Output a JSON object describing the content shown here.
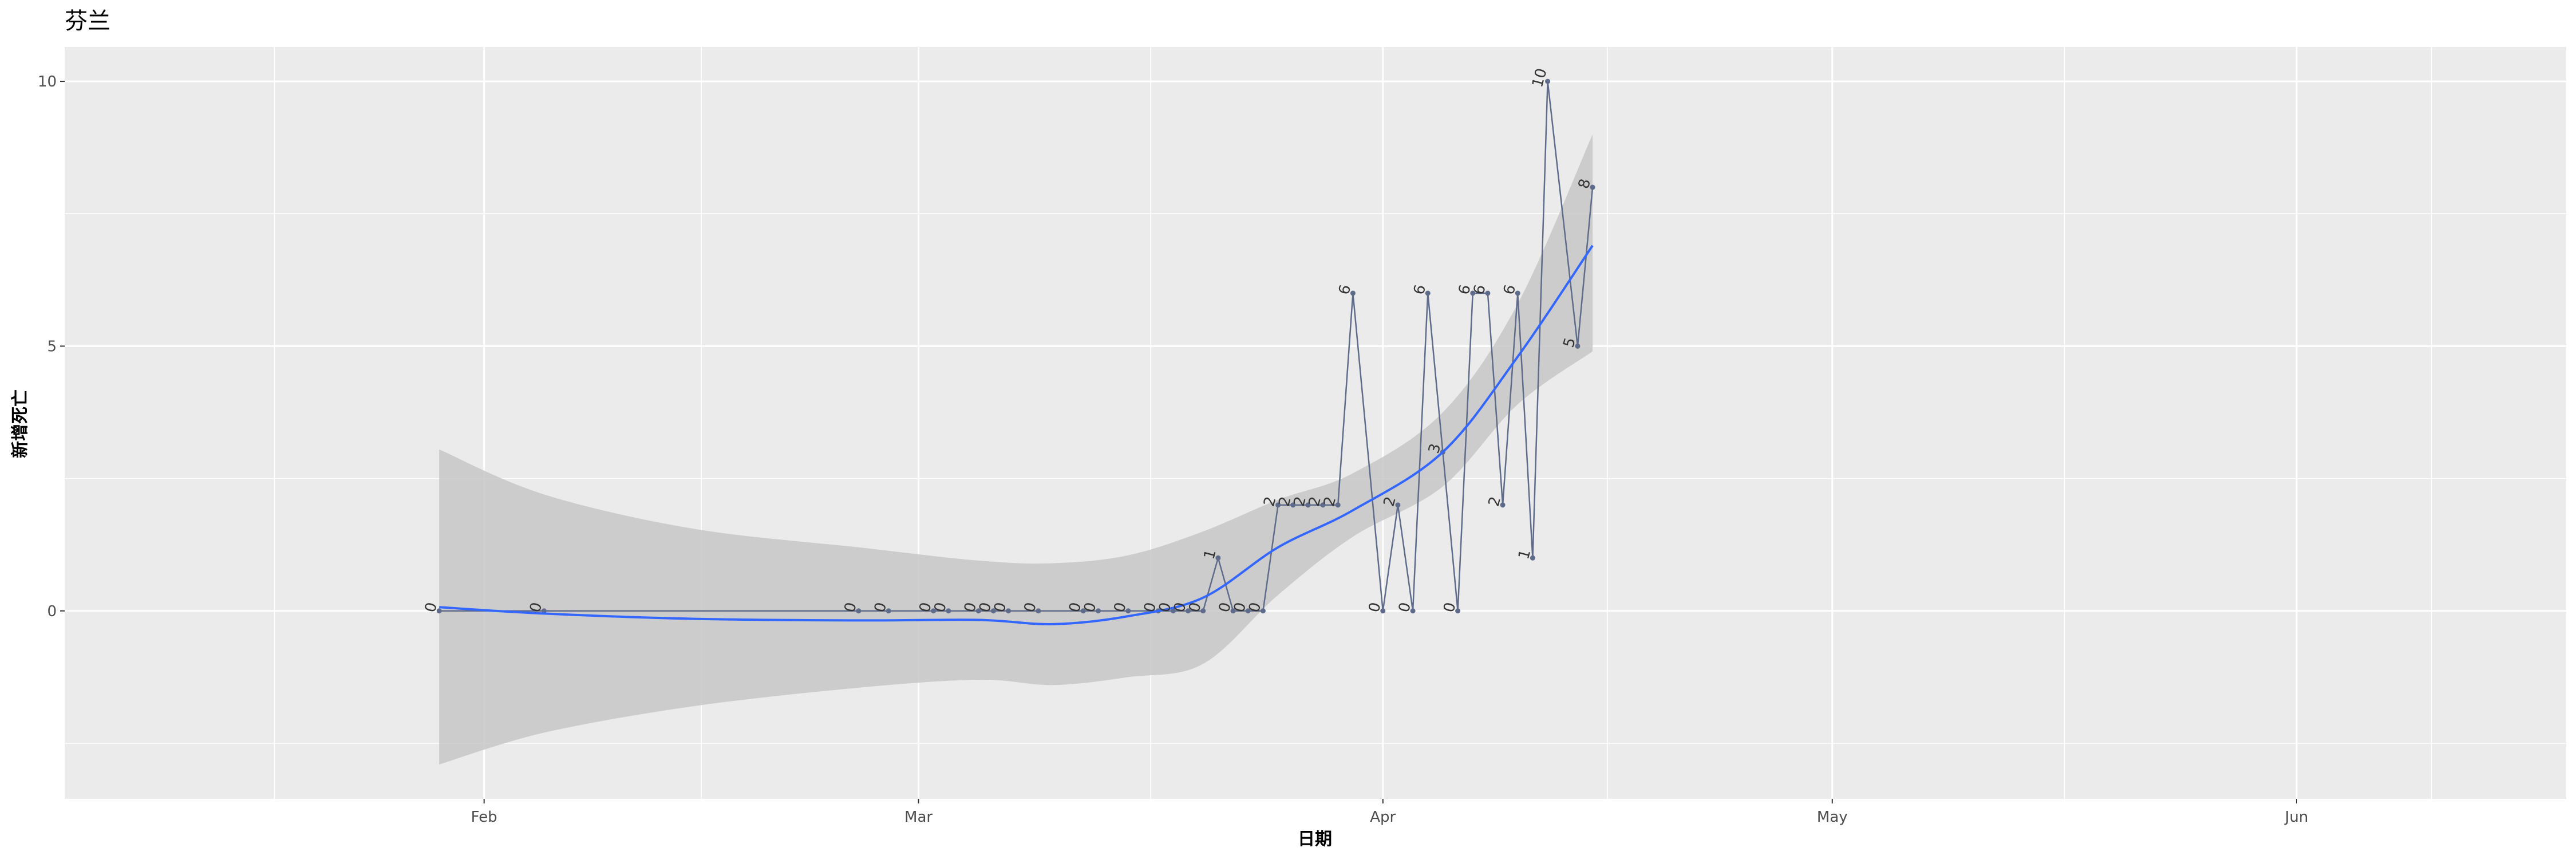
{
  "chart_data": {
    "type": "line",
    "title": "芬兰",
    "xlabel": "日期",
    "ylabel": "新增死亡",
    "x_ticks": [
      "2020-02-01",
      "2020-03-01",
      "2020-04-01",
      "2020-05-01",
      "2020-06-01"
    ],
    "x_tick_labels": [
      "Feb",
      "Mar",
      "Apr",
      "May",
      "Jun"
    ],
    "xlim": [
      "2020-01-04",
      "2020-06-19"
    ],
    "ylim": [
      -3.55,
      10.65
    ],
    "y_ticks": [
      0,
      5,
      10
    ],
    "y_tick_labels": [
      "0",
      "5",
      "10"
    ],
    "grid": true,
    "legend": "none",
    "series": [
      {
        "values": [
          {
            "x": "2020-01-29",
            "y": 0
          },
          {
            "x": "2020-02-05",
            "y": 0
          },
          {
            "x": "2020-02-26",
            "y": 0
          },
          {
            "x": "2020-02-28",
            "y": 0
          },
          {
            "x": "2020-03-02",
            "y": 0
          },
          {
            "x": "2020-03-03",
            "y": 0
          },
          {
            "x": "2020-03-05",
            "y": 0
          },
          {
            "x": "2020-03-06",
            "y": 0
          },
          {
            "x": "2020-03-07",
            "y": 0
          },
          {
            "x": "2020-03-09",
            "y": 0
          },
          {
            "x": "2020-03-12",
            "y": 0
          },
          {
            "x": "2020-03-13",
            "y": 0
          },
          {
            "x": "2020-03-15",
            "y": 0
          },
          {
            "x": "2020-03-17",
            "y": 0
          },
          {
            "x": "2020-03-18",
            "y": 0
          },
          {
            "x": "2020-03-19",
            "y": 0
          },
          {
            "x": "2020-03-20",
            "y": 0
          },
          {
            "x": "2020-03-21",
            "y": 1
          },
          {
            "x": "2020-03-22",
            "y": 0
          },
          {
            "x": "2020-03-23",
            "y": 0
          },
          {
            "x": "2020-03-24",
            "y": 0
          },
          {
            "x": "2020-03-25",
            "y": 2
          },
          {
            "x": "2020-03-26",
            "y": 2
          },
          {
            "x": "2020-03-27",
            "y": 2
          },
          {
            "x": "2020-03-28",
            "y": 2
          },
          {
            "x": "2020-03-29",
            "y": 2
          },
          {
            "x": "2020-03-30",
            "y": 6
          },
          {
            "x": "2020-04-01",
            "y": 0
          },
          {
            "x": "2020-04-02",
            "y": 2
          },
          {
            "x": "2020-04-03",
            "y": 0
          },
          {
            "x": "2020-04-04",
            "y": 6
          },
          {
            "x": "2020-04-05",
            "y": 3
          },
          {
            "x": "2020-04-06",
            "y": 0
          },
          {
            "x": "2020-04-07",
            "y": 6
          },
          {
            "x": "2020-04-08",
            "y": 6
          },
          {
            "x": "2020-04-09",
            "y": 2
          },
          {
            "x": "2020-04-10",
            "y": 6
          },
          {
            "x": "2020-04-11",
            "y": 1
          },
          {
            "x": "2020-04-12",
            "y": 10
          },
          {
            "x": "2020-04-14",
            "y": 5
          },
          {
            "x": "2020-04-15",
            "y": 8
          }
        ]
      }
    ],
    "smooth": {
      "x": [
        "2020-01-29",
        "2020-02-05",
        "2020-02-15",
        "2020-02-26",
        "2020-03-05",
        "2020-03-10",
        "2020-03-15",
        "2020-03-20",
        "2020-03-25",
        "2020-03-30",
        "2020-04-05",
        "2020-04-10",
        "2020-04-15"
      ],
      "fit": [
        0.07,
        -0.05,
        -0.15,
        -0.18,
        -0.17,
        -0.25,
        -0.1,
        0.25,
        1.2,
        1.9,
        3.0,
        4.8,
        6.9
      ],
      "lower": [
        -2.9,
        -2.3,
        -1.8,
        -1.45,
        -1.3,
        -1.4,
        -1.25,
        -1.0,
        0.3,
        1.4,
        2.35,
        3.9,
        4.9
      ],
      "upper": [
        3.05,
        2.2,
        1.55,
        1.2,
        0.95,
        0.9,
        1.05,
        1.5,
        2.1,
        2.6,
        3.75,
        5.8,
        9.0
      ]
    },
    "colors": {
      "panel": "#ebebeb",
      "grid_major": "#ffffff",
      "point_line": "#5e6b8a",
      "smooth": "#3366ff",
      "ribbon": "#c7c7c7"
    }
  }
}
